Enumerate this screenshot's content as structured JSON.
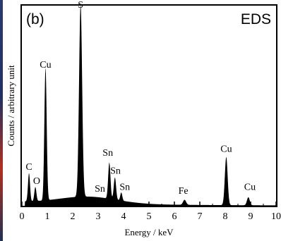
{
  "panel_label": "(b)",
  "technique_label": "EDS",
  "chart_data": {
    "type": "area",
    "title": "",
    "xlabel": "Energy / keV",
    "ylabel": "Counts / arbitrary unit",
    "xlim": [
      0,
      10
    ],
    "ylim": [
      0,
      1
    ],
    "x_ticks": [
      "0",
      "1",
      "2",
      "3",
      "4",
      "5",
      "6",
      "7",
      "8",
      "9",
      "10"
    ],
    "y_ticks_labeled": false,
    "grid": false,
    "legend": "none",
    "peaks": [
      {
        "label": "C",
        "energy": 0.28,
        "intensity": 0.14,
        "width": 0.04
      },
      {
        "label": "O",
        "energy": 0.53,
        "intensity": 0.07,
        "width": 0.04
      },
      {
        "label": "Cu",
        "energy": 0.93,
        "intensity": 0.66,
        "width": 0.045
      },
      {
        "label": "S",
        "energy": 2.31,
        "intensity": 0.96,
        "width": 0.06
      },
      {
        "label": "Sn",
        "energy": 3.44,
        "intensity": 0.18,
        "width": 0.045
      },
      {
        "label": "Sn",
        "energy": 3.66,
        "intensity": 0.11,
        "width": 0.045
      },
      {
        "label": "Sn",
        "energy": 3.91,
        "intensity": 0.04,
        "width": 0.04
      },
      {
        "label": "Fe",
        "energy": 6.4,
        "intensity": 0.025,
        "width": 0.06
      },
      {
        "label": "Cu",
        "energy": 8.04,
        "intensity": 0.24,
        "width": 0.055
      },
      {
        "label": "Cu",
        "energy": 8.91,
        "intensity": 0.04,
        "width": 0.055
      }
    ],
    "annotations": [
      {
        "text": "C",
        "energy": 0.28,
        "y": 0.18
      },
      {
        "text": "O",
        "energy": 0.58,
        "y": 0.11
      },
      {
        "text": "Cu",
        "energy": 0.93,
        "y": 0.69
      },
      {
        "text": "S",
        "energy": 2.31,
        "y": 0.99
      },
      {
        "text": "Sn",
        "energy": 3.38,
        "y": 0.25
      },
      {
        "text": "Sn",
        "energy": 3.68,
        "y": 0.16
      },
      {
        "text": "Sn",
        "energy": 3.07,
        "y": 0.07
      },
      {
        "text": "Sn",
        "energy": 4.05,
        "y": 0.08
      },
      {
        "text": "Fe",
        "energy": 6.35,
        "y": 0.06
      },
      {
        "text": "Cu",
        "energy": 8.04,
        "y": 0.27
      },
      {
        "text": "Cu",
        "energy": 8.97,
        "y": 0.08
      }
    ],
    "colors": {
      "fill": "#000000",
      "axis": "#000000",
      "background": "#ffffff"
    }
  }
}
